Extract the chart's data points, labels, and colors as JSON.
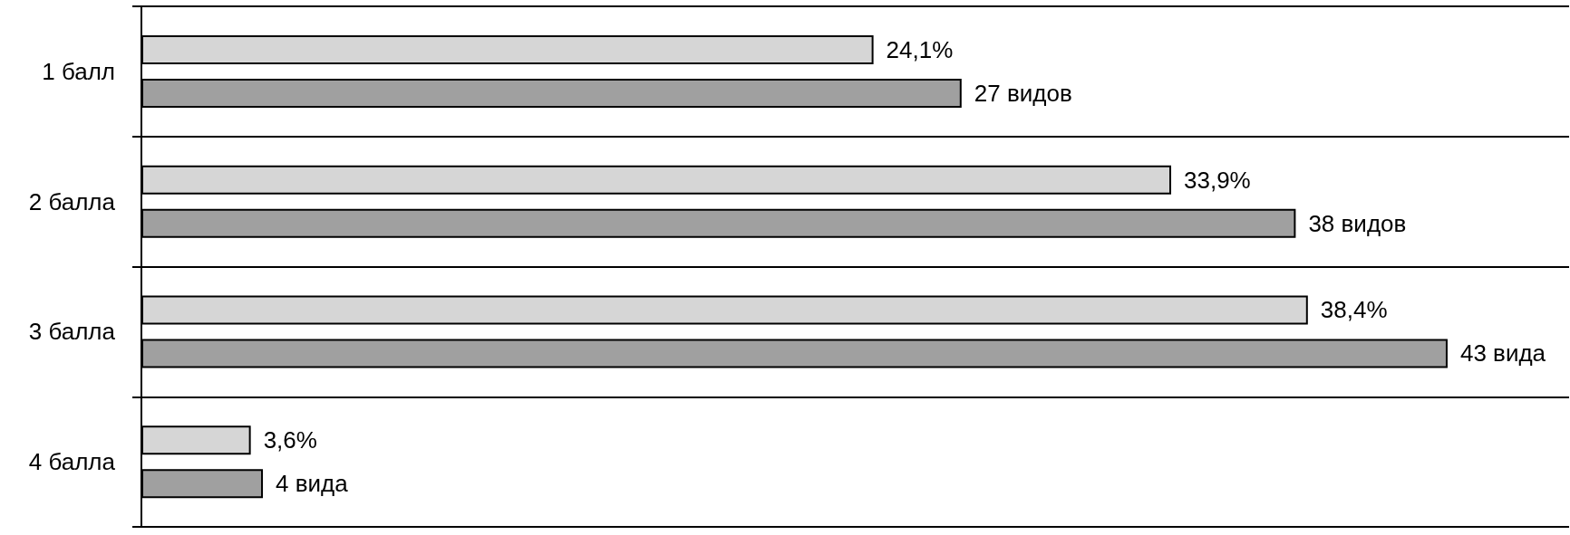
{
  "chart_data": {
    "type": "bar",
    "orientation": "horizontal",
    "categories": [
      "1 балл",
      "2 балла",
      "3 балла",
      "4 балла"
    ],
    "series": [
      {
        "color": "#d6d6d6",
        "values": [
          24.1,
          33.9,
          38.4,
          3.6
        ],
        "value_labels": [
          "24,1%",
          "33,9%",
          "38,4%",
          "3,6%"
        ]
      },
      {
        "color": "#a0a0a0",
        "values": [
          27,
          38,
          43,
          4
        ],
        "value_labels": [
          "27 видов",
          "38 видов",
          "43 вида",
          "4 вида"
        ]
      }
    ],
    "xlim": [
      0,
      47
    ],
    "grid": "y",
    "tick_labels": "y"
  }
}
